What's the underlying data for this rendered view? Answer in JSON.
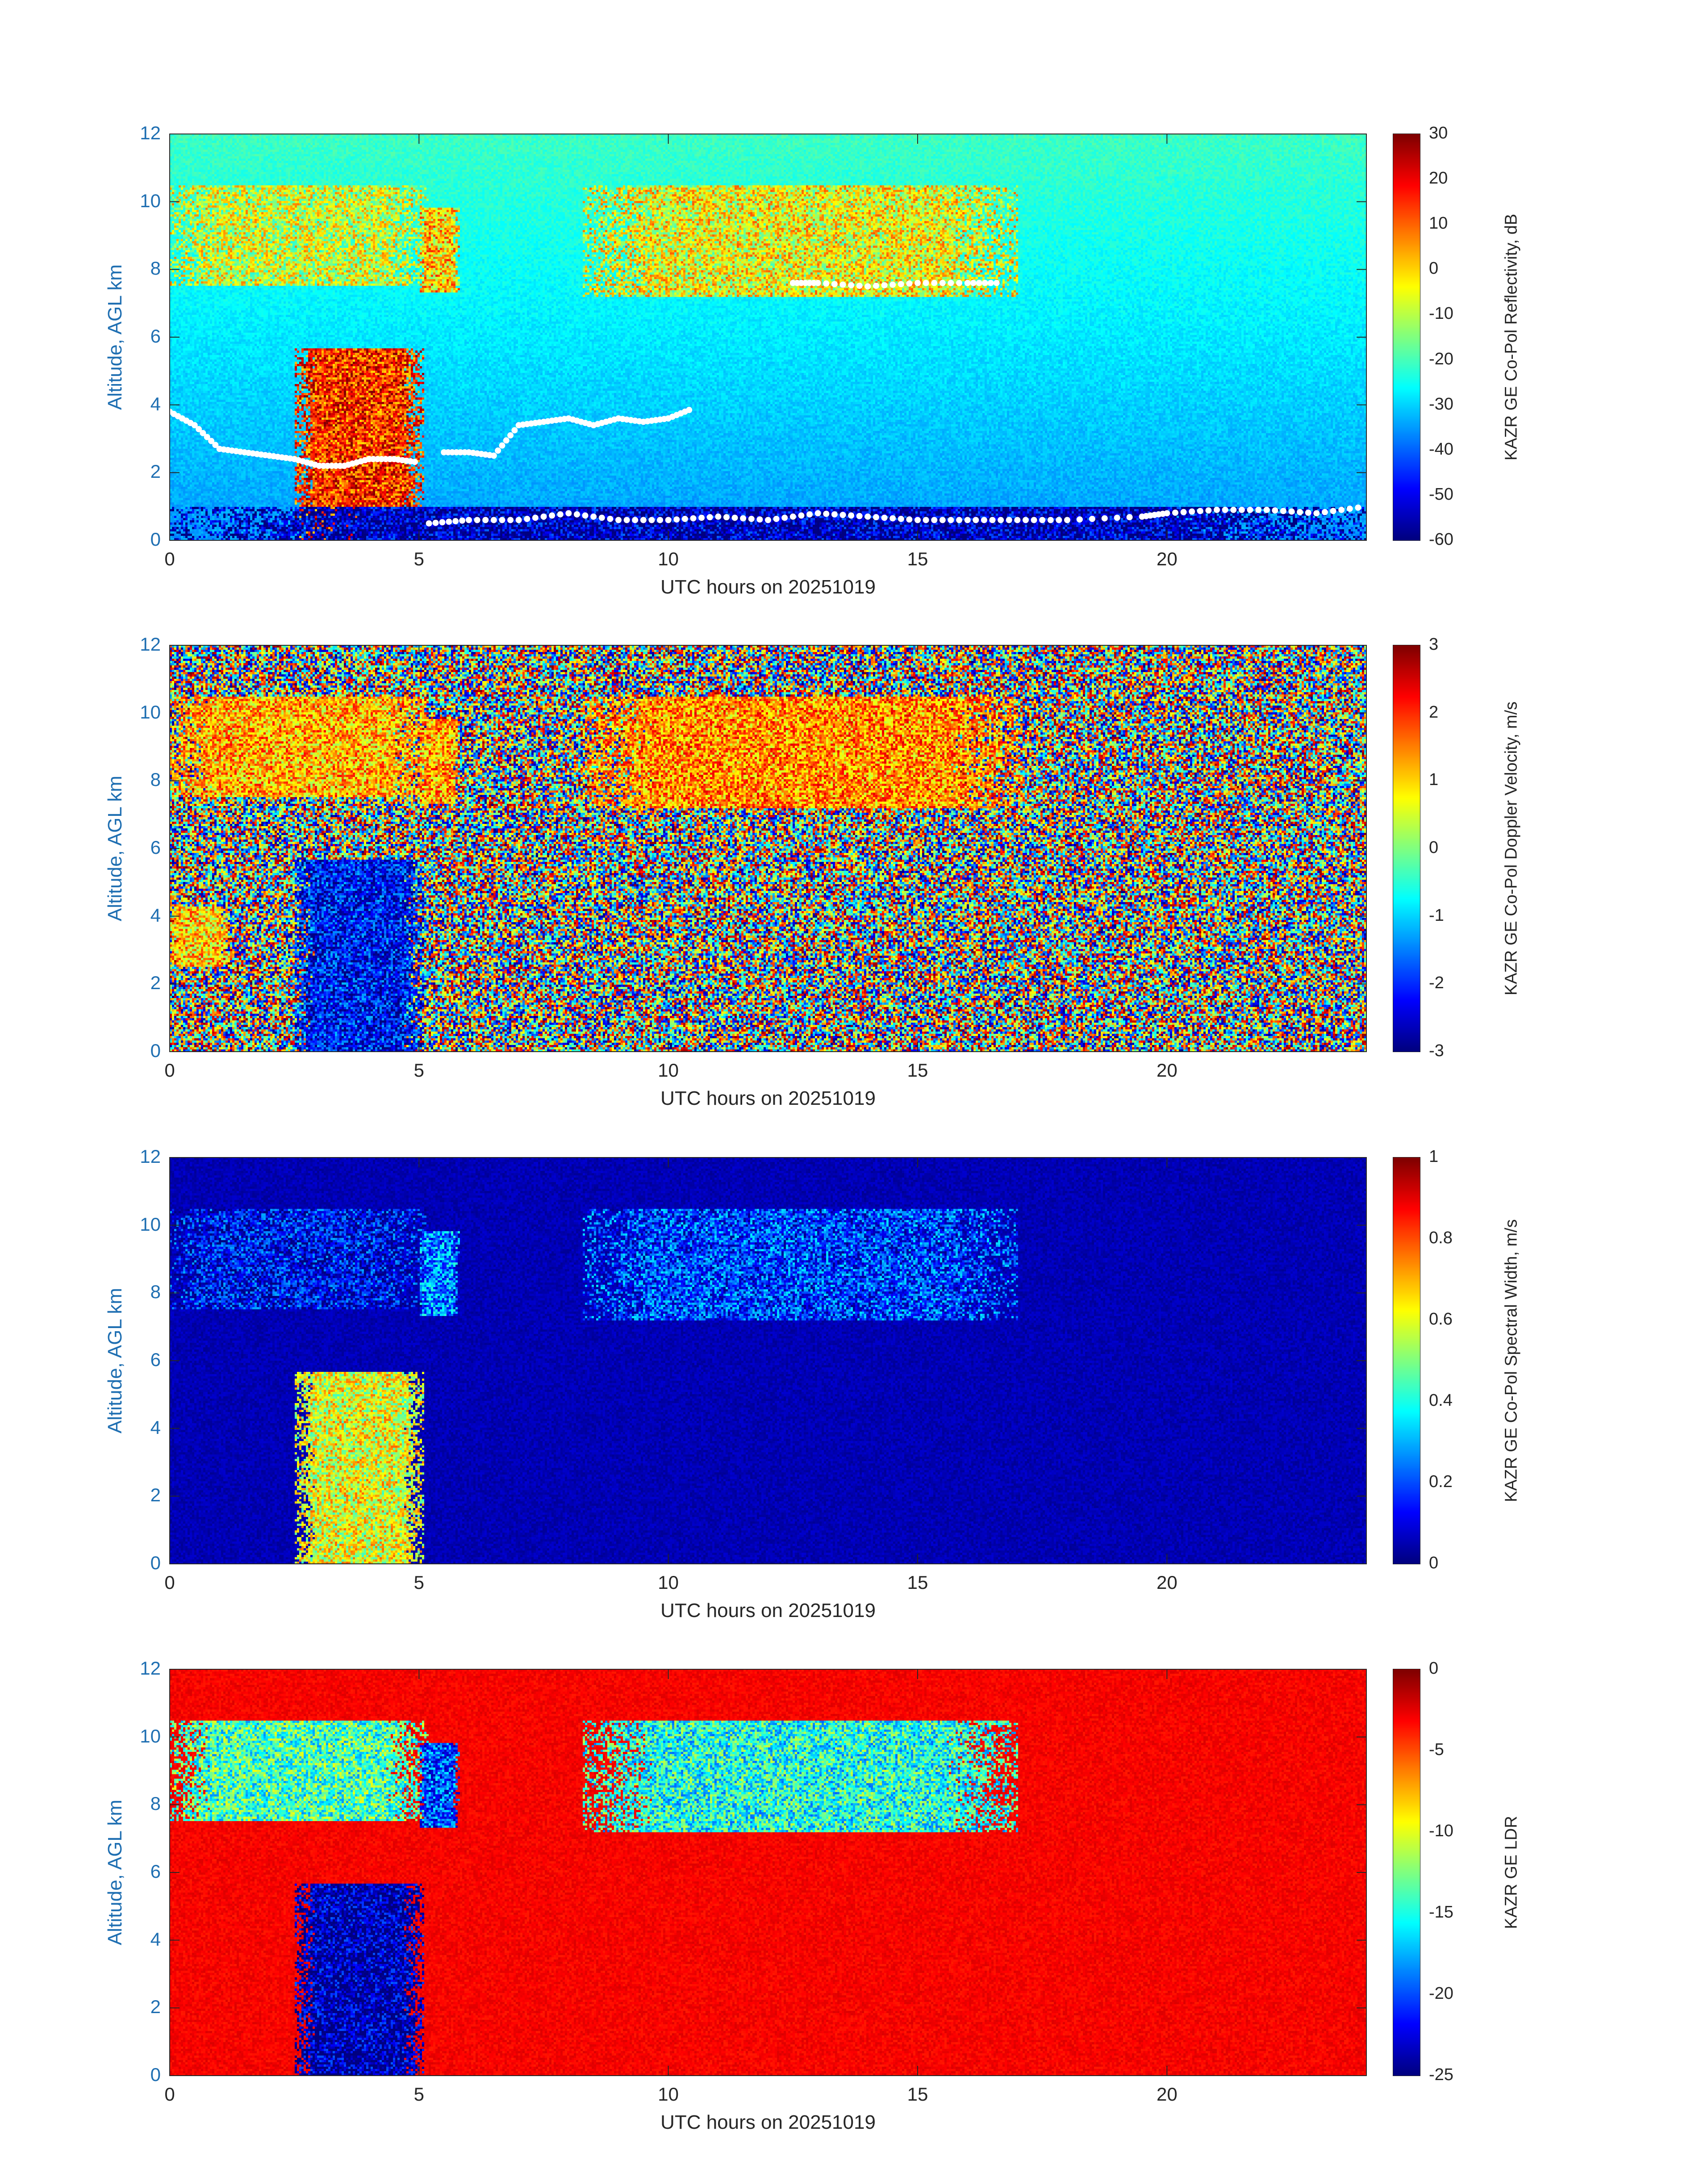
{
  "chart_data": [
    {
      "type": "heatmap",
      "title": "",
      "xlabel": "UTC hours on 20251019",
      "ylabel": "Altitude, AGL km",
      "xlim": [
        0,
        24
      ],
      "ylim": [
        0,
        12
      ],
      "x_ticks": [
        0,
        5,
        10,
        15,
        20
      ],
      "y_ticks": [
        0,
        2,
        4,
        6,
        8,
        10,
        12
      ],
      "colorbar": {
        "label": "KAZR GE Co-Pol Reflectivity, dB",
        "range": [
          -60,
          30
        ],
        "ticks": [
          30,
          20,
          10,
          0,
          -10,
          -20,
          -30,
          -40,
          -50,
          -60
        ],
        "colormap": "jet"
      },
      "background_value": -28,
      "features": [
        {
          "x": [
            0,
            5.2
          ],
          "y": [
            7.5,
            10.5
          ],
          "value": -8,
          "note": "cirrus"
        },
        {
          "x": [
            5.0,
            5.8
          ],
          "y": [
            7.3,
            9.8
          ],
          "value": 0
        },
        {
          "x": [
            8.3,
            17.0
          ],
          "y": [
            7.2,
            10.5
          ],
          "value": -5
        },
        {
          "x": [
            2.5,
            5.1
          ],
          "y": [
            0,
            5.7
          ],
          "value": 15,
          "note": "convective precipitation"
        },
        {
          "x": [
            0,
            24
          ],
          "y": [
            0,
            1.0
          ],
          "value": -55,
          "note": "low-level clear air"
        }
      ],
      "overlay": {
        "series": [
          {
            "x": [
              0,
              0.5,
              1.0,
              1.5,
              2.0,
              2.5,
              3.0,
              3.5,
              4.0,
              4.5,
              5.0
            ],
            "y": [
              3.8,
              3.4,
              2.7,
              2.6,
              2.5,
              2.4,
              2.2,
              2.2,
              2.4,
              2.4,
              2.3
            ]
          },
          {
            "x": [
              5.5,
              6.0,
              6.5,
              7.0,
              7.5,
              8.0,
              8.5,
              9.0,
              9.5,
              10.0,
              10.5
            ],
            "y": [
              2.6,
              2.6,
              2.5,
              3.4,
              3.5,
              3.6,
              3.4,
              3.6,
              3.5,
              3.6,
              3.9
            ]
          },
          {
            "x": [
              5.2,
              6.0,
              7.0,
              8.0,
              9.0,
              10.0,
              11.0,
              12.0,
              13.0,
              14.0,
              15.0,
              16.0,
              17.0,
              18.0,
              19.5,
              20.0,
              21.0,
              22.0,
              23.0,
              24.0
            ],
            "y": [
              0.5,
              0.6,
              0.6,
              0.8,
              0.6,
              0.6,
              0.7,
              0.6,
              0.8,
              0.7,
              0.6,
              0.6,
              0.6,
              0.6,
              0.7,
              0.8,
              0.9,
              0.9,
              0.8,
              1.0
            ]
          },
          {
            "x": [
              12.5,
              13.0,
              14.0,
              15.0,
              16.0,
              16.7
            ],
            "y": [
              7.6,
              7.6,
              7.5,
              7.6,
              7.6,
              7.6
            ]
          }
        ]
      }
    },
    {
      "type": "heatmap",
      "title": "",
      "xlabel": "UTC hours on 20251019",
      "ylabel": "Altitude, AGL km",
      "xlim": [
        0,
        24
      ],
      "ylim": [
        0,
        12
      ],
      "x_ticks": [
        0,
        5,
        10,
        15,
        20
      ],
      "y_ticks": [
        0,
        2,
        4,
        6,
        8,
        10,
        12
      ],
      "colorbar": {
        "label": "KAZR GE Co-Pol Doppler Velocity, m/s",
        "range": [
          -3,
          3
        ],
        "ticks": [
          3,
          2,
          1,
          0,
          -1,
          -2,
          -3
        ],
        "colormap": "jet"
      },
      "background_value": "noise",
      "features": [
        {
          "x": [
            0,
            5.2
          ],
          "y": [
            7.5,
            10.5
          ],
          "value": 1.2
        },
        {
          "x": [
            5.0,
            5.8
          ],
          "y": [
            7.3,
            9.8
          ],
          "value": 1.3
        },
        {
          "x": [
            8.3,
            17.0
          ],
          "y": [
            7.2,
            10.5
          ],
          "value": 1.4
        },
        {
          "x": [
            2.5,
            5.1
          ],
          "y": [
            0,
            5.7
          ],
          "value": -2.2,
          "note": "falling precipitation"
        },
        {
          "x": [
            0,
            1.2
          ],
          "y": [
            2.5,
            4.3
          ],
          "value": 1.0
        }
      ]
    },
    {
      "type": "heatmap",
      "title": "",
      "xlabel": "UTC hours on 20251019",
      "ylabel": "Altitude, AGL km",
      "xlim": [
        0,
        24
      ],
      "ylim": [
        0,
        12
      ],
      "x_ticks": [
        0,
        5,
        10,
        15,
        20
      ],
      "y_ticks": [
        0,
        2,
        4,
        6,
        8,
        10,
        12
      ],
      "colorbar": {
        "label": "KAZR GE Co-Pol Spectral Width, m/s",
        "range": [
          0,
          1
        ],
        "ticks": [
          1,
          0.8,
          0.6,
          0.4,
          0.2,
          0
        ],
        "colormap": "jet"
      },
      "background_value": 0.05,
      "features": [
        {
          "x": [
            0,
            5.2
          ],
          "y": [
            7.5,
            10.5
          ],
          "value": 0.12
        },
        {
          "x": [
            5.0,
            5.8
          ],
          "y": [
            7.3,
            9.8
          ],
          "value": 0.25
        },
        {
          "x": [
            8.3,
            17.0
          ],
          "y": [
            7.2,
            10.5
          ],
          "value": 0.18
        },
        {
          "x": [
            2.5,
            5.1
          ],
          "y": [
            0,
            5.7
          ],
          "value": 0.6,
          "note": "convective precipitation"
        }
      ]
    },
    {
      "type": "heatmap",
      "title": "",
      "xlabel": "UTC hours on 20251019",
      "ylabel": "Altitude, AGL km",
      "xlim": [
        0,
        24
      ],
      "ylim": [
        0,
        12
      ],
      "x_ticks": [
        0,
        5,
        10,
        15,
        20
      ],
      "y_ticks": [
        0,
        2,
        4,
        6,
        8,
        10,
        12
      ],
      "colorbar": {
        "label": "KAZR GE LDR",
        "range": [
          -25,
          0
        ],
        "ticks": [
          0,
          -5,
          -10,
          -15,
          -20,
          -25
        ],
        "colormap": "jet"
      },
      "background_value": -3,
      "features": [
        {
          "x": [
            0,
            5.2
          ],
          "y": [
            7.5,
            10.5
          ],
          "value": -14
        },
        {
          "x": [
            5.0,
            5.8
          ],
          "y": [
            7.3,
            9.8
          ],
          "value": -20
        },
        {
          "x": [
            8.3,
            17.0
          ],
          "y": [
            7.2,
            10.5
          ],
          "value": -15
        },
        {
          "x": [
            2.5,
            5.1
          ],
          "y": [
            0,
            5.7
          ],
          "value": -24,
          "note": "precipitation"
        }
      ]
    }
  ]
}
